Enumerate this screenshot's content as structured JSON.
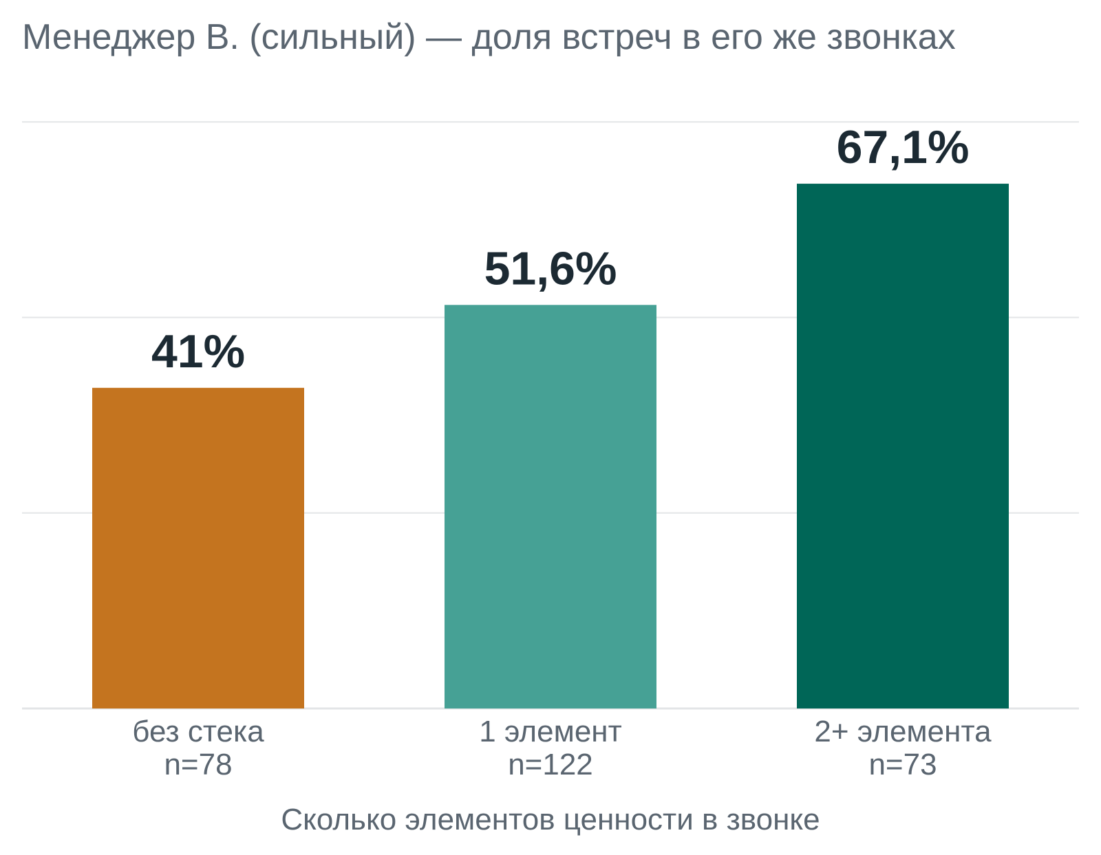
{
  "chart_data": {
    "type": "bar",
    "title": "Менеджер В. (сильный) — доля встреч в его же звонках",
    "xlabel": "Сколько элементов ценности в звонке",
    "ylabel": "",
    "ylim": [
      0,
      75
    ],
    "grid": true,
    "categories": [
      "без стека",
      "1 элемент",
      "2+ элемента"
    ],
    "sample_sizes": [
      "n=78",
      "n=122",
      "n=73"
    ],
    "values": [
      41,
      51.6,
      67.1
    ],
    "value_labels": [
      "41%",
      "51,6%",
      "67,1%"
    ],
    "colors": [
      "#c4741f",
      "#46a195",
      "#006657"
    ]
  }
}
